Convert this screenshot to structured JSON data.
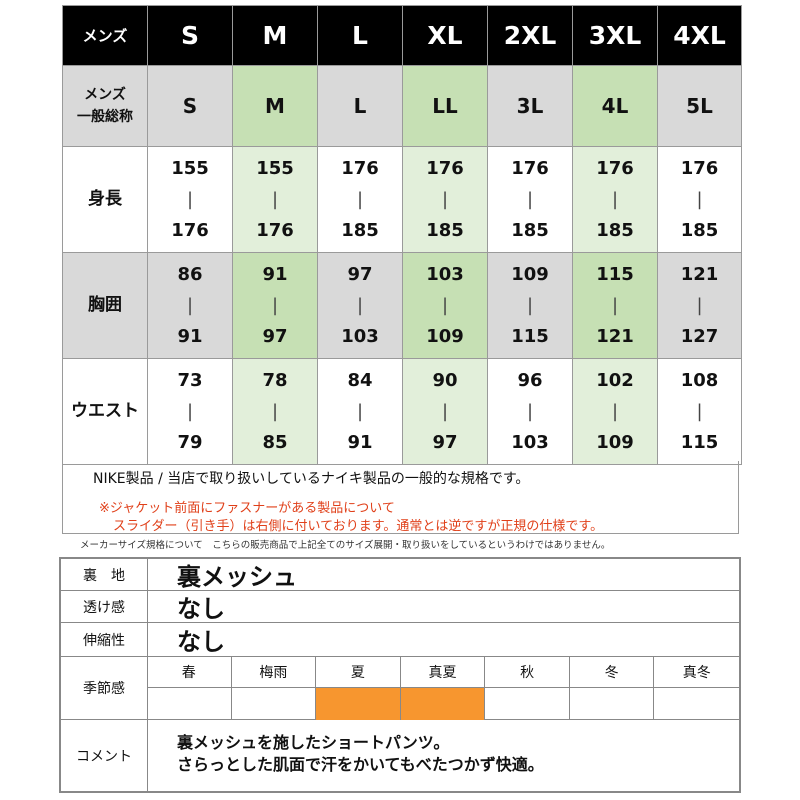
{
  "size_table": {
    "header": {
      "label": "メンズ",
      "sizes": [
        "S",
        "M",
        "L",
        "XL",
        "2XL",
        "3XL",
        "4XL"
      ]
    },
    "general": {
      "label_line1": "メンズ",
      "label_line2": "一般総称",
      "sizes": [
        "S",
        "M",
        "L",
        "LL",
        "3L",
        "4L",
        "5L"
      ]
    },
    "rows": [
      {
        "label": "身長",
        "low": [
          "155",
          "155",
          "176",
          "176",
          "176",
          "176",
          "176"
        ],
        "high": [
          "176",
          "176",
          "185",
          "185",
          "185",
          "185",
          "185"
        ]
      },
      {
        "label": "胸囲",
        "low": [
          "86",
          "91",
          "97",
          "103",
          "109",
          "115",
          "121"
        ],
        "high": [
          "91",
          "97",
          "103",
          "109",
          "115",
          "121",
          "127"
        ]
      },
      {
        "label": "ウエスト",
        "low": [
          "73",
          "78",
          "84",
          "90",
          "96",
          "102",
          "108"
        ],
        "high": [
          "79",
          "85",
          "91",
          "97",
          "103",
          "109",
          "115"
        ]
      }
    ],
    "separator": "|"
  },
  "notes": {
    "line1": "NIKE製品 / 当店で取り扱いしているナイキ製品の一般的な規格です。",
    "line2": "※ジャケット前面にファスナーがある製品について",
    "line3": "スライダー（引き手）は右側に付いております。通常とは逆ですが正規の仕様です。",
    "disclaimer": "メーカーサイズ規格について　こちらの販売商品で上記全てのサイズ展開・取り扱いをしているというわけではありません。"
  },
  "details": {
    "lining": {
      "label": "裏　地",
      "value": "裏メッシュ"
    },
    "sheer": {
      "label": "透け感",
      "value": "なし"
    },
    "stretch": {
      "label": "伸縮性",
      "value": "なし"
    },
    "season": {
      "label": "季節感",
      "items": [
        {
          "name": "春",
          "active": false
        },
        {
          "name": "梅雨",
          "active": false
        },
        {
          "name": "夏",
          "active": true
        },
        {
          "name": "真夏",
          "active": true
        },
        {
          "name": "秋",
          "active": false
        },
        {
          "name": "冬",
          "active": false
        },
        {
          "name": "真冬",
          "active": false
        }
      ],
      "active_color": "#f7962f"
    },
    "comment": {
      "label": "コメント",
      "line1": "裏メッシュを施したショートパンツ。",
      "line2": "さらっとした肌面で汗をかいてもべたつかず快適。"
    }
  }
}
